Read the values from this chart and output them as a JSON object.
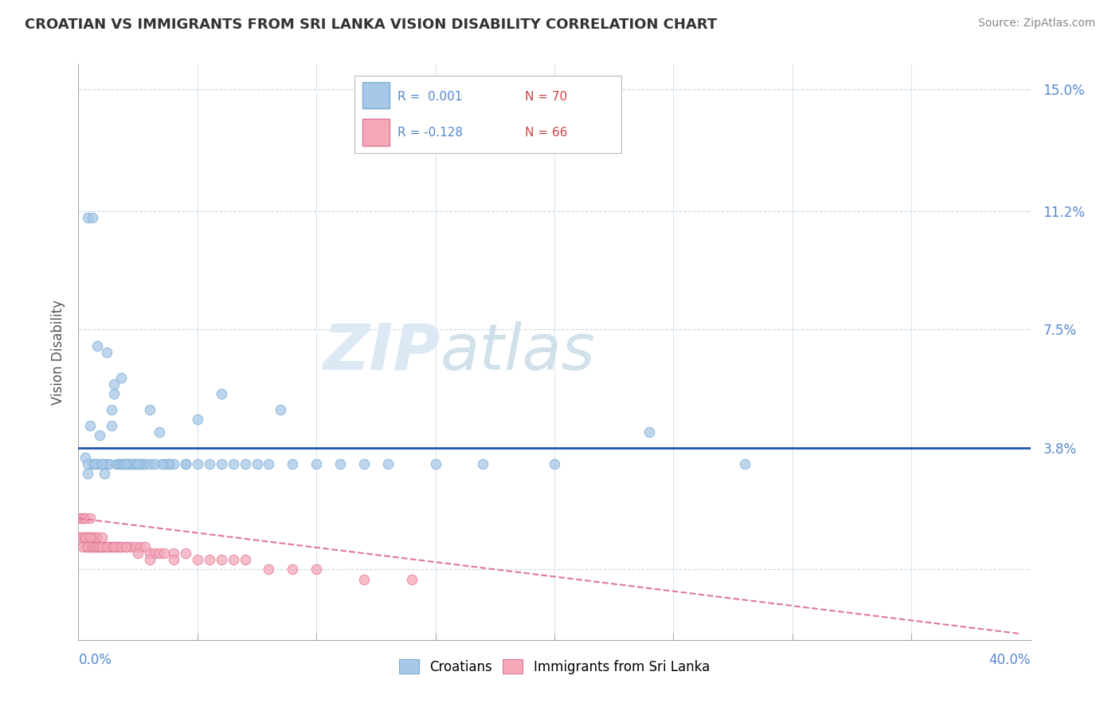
{
  "title": "CROATIAN VS IMMIGRANTS FROM SRI LANKA VISION DISABILITY CORRELATION CHART",
  "source": "Source: ZipAtlas.com",
  "ylabel": "Vision Disability",
  "yticks": [
    0.0,
    0.038,
    0.075,
    0.112,
    0.15
  ],
  "ytick_labels": [
    "",
    "3.8%",
    "7.5%",
    "11.2%",
    "15.0%"
  ],
  "xmin": 0.0,
  "xmax": 0.4,
  "ymin": -0.022,
  "ymax": 0.158,
  "watermark_zip": "ZIP",
  "watermark_atlas": "atlas",
  "blue_scatter_color": "#a8c8e8",
  "blue_scatter_edge": "#7aafd4",
  "pink_scatter_color": "#f4a8b8",
  "pink_scatter_edge": "#e07898",
  "blue_line_color": "#2255aa",
  "pink_line_color": "#e07898",
  "title_color": "#333333",
  "source_color": "#888888",
  "axis_tick_color": "#5588cc",
  "grid_color": "#c8d8e8",
  "cr_x": [
    0.003,
    0.004,
    0.005,
    0.006,
    0.007,
    0.008,
    0.009,
    0.01,
    0.011,
    0.012,
    0.013,
    0.014,
    0.015,
    0.016,
    0.017,
    0.018,
    0.019,
    0.02,
    0.021,
    0.022,
    0.023,
    0.024,
    0.025,
    0.026,
    0.027,
    0.028,
    0.03,
    0.032,
    0.034,
    0.036,
    0.038,
    0.04,
    0.045,
    0.05,
    0.055,
    0.06,
    0.065,
    0.07,
    0.075,
    0.08,
    0.09,
    0.1,
    0.11,
    0.12,
    0.13,
    0.15,
    0.17,
    0.2,
    0.24,
    0.28,
    0.004,
    0.006,
    0.008,
    0.012,
    0.015,
    0.018,
    0.022,
    0.03,
    0.038,
    0.05,
    0.004,
    0.007,
    0.01,
    0.014,
    0.02,
    0.025,
    0.035,
    0.045,
    0.06,
    0.085
  ],
  "cr_y": [
    0.035,
    0.03,
    0.045,
    0.033,
    0.033,
    0.033,
    0.042,
    0.033,
    0.03,
    0.033,
    0.033,
    0.05,
    0.055,
    0.033,
    0.033,
    0.033,
    0.033,
    0.033,
    0.033,
    0.033,
    0.033,
    0.033,
    0.033,
    0.033,
    0.033,
    0.033,
    0.033,
    0.033,
    0.043,
    0.033,
    0.033,
    0.033,
    0.033,
    0.047,
    0.033,
    0.033,
    0.033,
    0.033,
    0.033,
    0.033,
    0.033,
    0.033,
    0.033,
    0.033,
    0.033,
    0.033,
    0.033,
    0.033,
    0.043,
    0.033,
    0.11,
    0.11,
    0.07,
    0.068,
    0.058,
    0.06,
    0.033,
    0.05,
    0.033,
    0.033,
    0.033,
    0.033,
    0.033,
    0.045,
    0.033,
    0.033,
    0.033,
    0.033,
    0.055,
    0.05
  ],
  "sl_x": [
    0.001,
    0.001,
    0.002,
    0.002,
    0.003,
    0.003,
    0.003,
    0.004,
    0.004,
    0.005,
    0.005,
    0.005,
    0.006,
    0.006,
    0.007,
    0.007,
    0.008,
    0.008,
    0.009,
    0.01,
    0.01,
    0.011,
    0.012,
    0.013,
    0.014,
    0.015,
    0.016,
    0.017,
    0.018,
    0.02,
    0.022,
    0.024,
    0.026,
    0.028,
    0.03,
    0.032,
    0.034,
    0.036,
    0.04,
    0.045,
    0.05,
    0.055,
    0.06,
    0.065,
    0.07,
    0.08,
    0.09,
    0.1,
    0.12,
    0.14,
    0.002,
    0.003,
    0.004,
    0.005,
    0.006,
    0.007,
    0.008,
    0.009,
    0.01,
    0.012,
    0.015,
    0.018,
    0.02,
    0.025,
    0.03,
    0.04
  ],
  "sl_y": [
    0.01,
    0.016,
    0.01,
    0.016,
    0.01,
    0.007,
    0.016,
    0.01,
    0.007,
    0.007,
    0.01,
    0.016,
    0.01,
    0.007,
    0.007,
    0.01,
    0.007,
    0.01,
    0.007,
    0.007,
    0.01,
    0.007,
    0.007,
    0.007,
    0.007,
    0.007,
    0.007,
    0.007,
    0.007,
    0.007,
    0.007,
    0.007,
    0.007,
    0.007,
    0.005,
    0.005,
    0.005,
    0.005,
    0.005,
    0.005,
    0.003,
    0.003,
    0.003,
    0.003,
    0.003,
    0.0,
    0.0,
    0.0,
    -0.003,
    -0.003,
    0.007,
    0.01,
    0.007,
    0.01,
    0.007,
    0.007,
    0.007,
    0.007,
    0.007,
    0.007,
    0.007,
    0.007,
    0.007,
    0.005,
    0.003,
    0.003
  ],
  "cr_line_y": [
    0.038,
    0.038
  ],
  "sl_line_x": [
    0.0,
    0.395
  ],
  "sl_line_y": [
    0.016,
    -0.02
  ]
}
